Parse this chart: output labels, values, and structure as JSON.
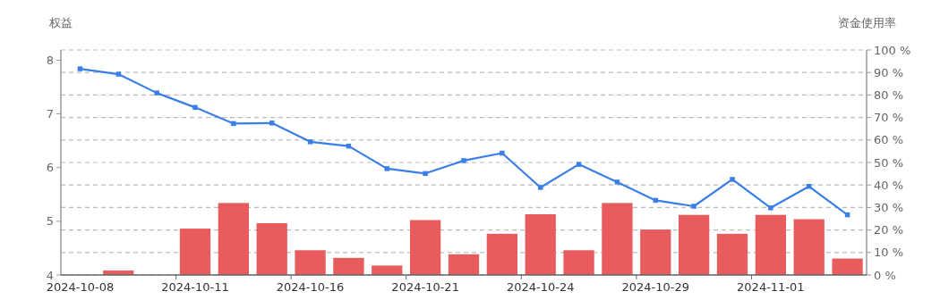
{
  "chart_data": {
    "type": "bar",
    "ylabel": "权益",
    "y2label": "资金使用率",
    "categories": [
      "2024-10-08",
      null,
      null,
      "2024-10-11",
      null,
      null,
      "2024-10-16",
      null,
      null,
      "2024-10-21",
      null,
      null,
      "2024-10-24",
      null,
      null,
      "2024-10-29",
      null,
      null,
      "2024-11-01",
      null,
      null
    ],
    "series": [
      {
        "axis": "y2",
        "color": "#e85c5e",
        "values": [
          0,
          2,
          0,
          20.6,
          32,
          23,
          11,
          7.6,
          4.2,
          24.4,
          9.2,
          18.3,
          27,
          11,
          32,
          20.2,
          26.7,
          18.3,
          26.7,
          24.8,
          7.3
        ]
      },
      {
        "type": "line",
        "axis": "y",
        "color": "#3a7ee8",
        "marker": "square",
        "values": [
          7.84,
          7.74,
          7.39,
          7.12,
          6.82,
          6.83,
          6.48,
          6.4,
          5.98,
          5.89,
          6.13,
          6.27,
          5.63,
          6.06,
          5.73,
          5.39,
          5.28,
          5.78,
          5.25,
          5.65,
          5.12
        ]
      }
    ],
    "ylim": [
      4,
      8.19
    ],
    "yticks": [
      4,
      5,
      6,
      7,
      8
    ],
    "y2lim": [
      0,
      100
    ],
    "y2ticks": [
      {
        "value": 0,
        "label": "0 %"
      },
      {
        "value": 10,
        "label": "10 %"
      },
      {
        "value": 20,
        "label": "20 %"
      },
      {
        "value": 30,
        "label": "30 %"
      },
      {
        "value": 40,
        "label": "40 %"
      },
      {
        "value": 50,
        "label": "50 %"
      },
      {
        "value": 60,
        "label": "60 %"
      },
      {
        "value": 70,
        "label": "70 %"
      },
      {
        "value": 80,
        "label": "80 %"
      },
      {
        "value": 90,
        "label": "90 %"
      },
      {
        "value": 100,
        "label": "100 %"
      }
    ],
    "grid": true
  }
}
